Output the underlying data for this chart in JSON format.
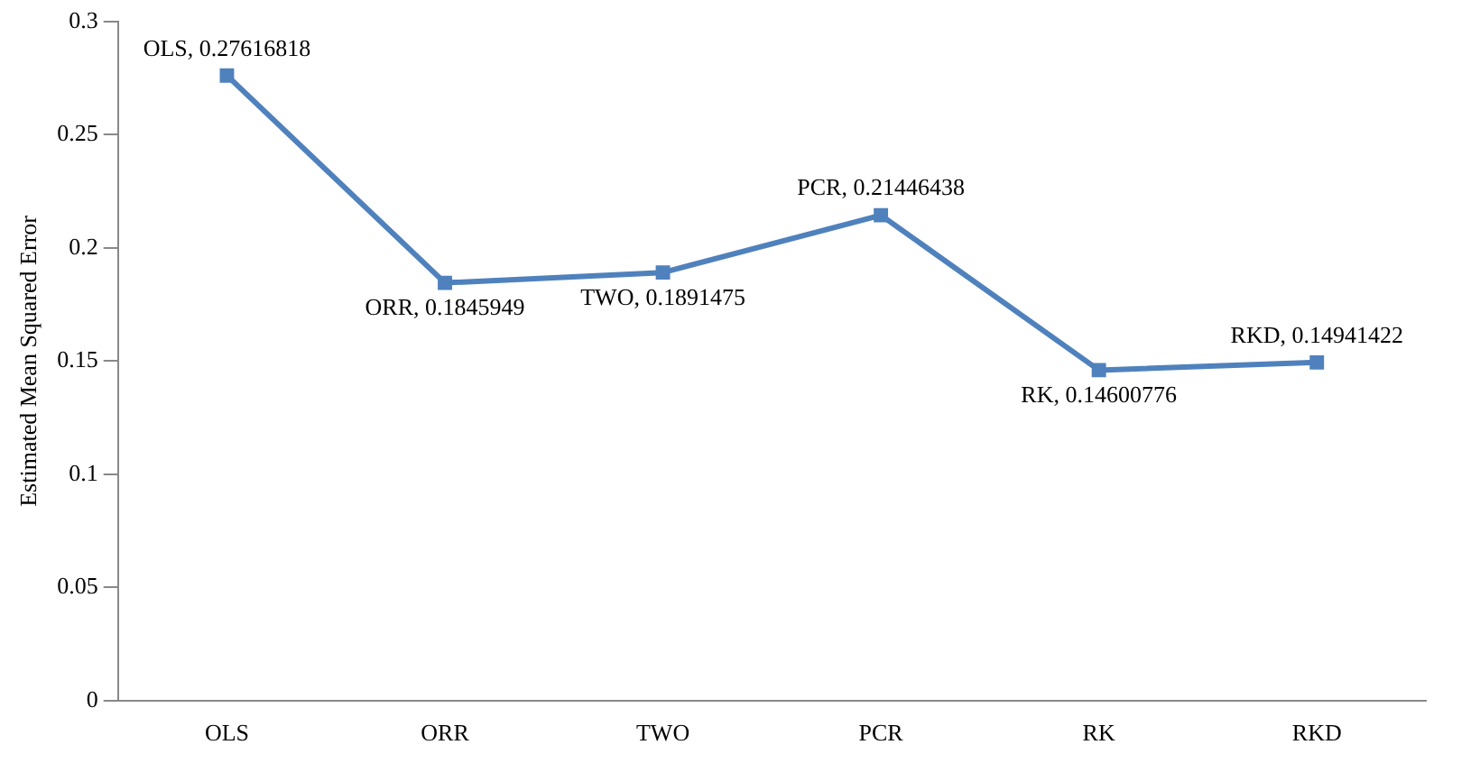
{
  "chart_data": {
    "type": "line",
    "ylabel": "Estimated Mean Squared Error",
    "categories": [
      "OLS",
      "ORR",
      "TWO",
      "PCR",
      "RK",
      "RKD"
    ],
    "series": [
      {
        "color": "#4f81bd",
        "values": [
          0.27616818,
          0.1845949,
          0.1891475,
          0.21446438,
          0.14600776,
          0.14941422
        ],
        "value_labels": [
          "OLS, 0.27616818",
          "ORR, 0.1845949",
          "TWO, 0.1891475",
          "PCR, 0.21446438",
          "RK, 0.14600776",
          "RKD, 0.14941422"
        ]
      }
    ],
    "ylim": [
      0,
      0.3
    ],
    "yticks": [
      0,
      0.05,
      0.1,
      0.15,
      0.2,
      0.25,
      0.3
    ],
    "grid": false,
    "legend": false,
    "marker": "square",
    "line_style": "solid"
  }
}
